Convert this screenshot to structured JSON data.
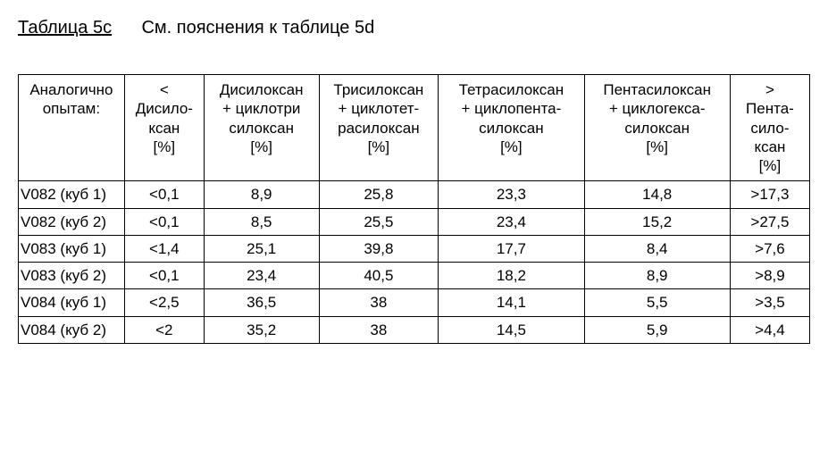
{
  "title_label": "Таблица 5c",
  "title_note": "См. пояснения к таблице 5d",
  "table": {
    "columns": [
      "Аналогично опытам:",
      "<\nДисило-\nксан\n[%]",
      "Дисилоксан\n+ циклотри\nсилоксан\n[%]",
      "Трисилоксан\n+ циклотет-\nрасилоксан\n[%]",
      "Тетрасилоксан\n+ циклопента-\nсилоксан\n[%]",
      "Пентасилоксан\n+ циклогекса-\nсилоксан\n[%]",
      ">\nПента-\nсило-\nксан\n[%]"
    ],
    "rows": [
      [
        "V082 (куб 1)",
        "<0,1",
        "8,9",
        "25,8",
        "23,3",
        "14,8",
        ">17,3"
      ],
      [
        "V082 (куб 2)",
        "<0,1",
        "8,5",
        "25,5",
        "23,4",
        "15,2",
        ">27,5"
      ],
      [
        "V083 (куб 1)",
        "<1,4",
        "25,1",
        "39,8",
        "17,7",
        "8,4",
        ">7,6"
      ],
      [
        "V083 (куб 2)",
        "<0,1",
        "23,4",
        "40,5",
        "18,2",
        "8,9",
        ">8,9"
      ],
      [
        "V084 (куб 1)",
        "<2,5",
        "36,5",
        "38",
        "14,1",
        "5,5",
        ">3,5"
      ],
      [
        "V084 (куб 2)",
        "<2",
        "35,2",
        "38",
        "14,5",
        "5,9",
        ">4,4"
      ]
    ]
  }
}
